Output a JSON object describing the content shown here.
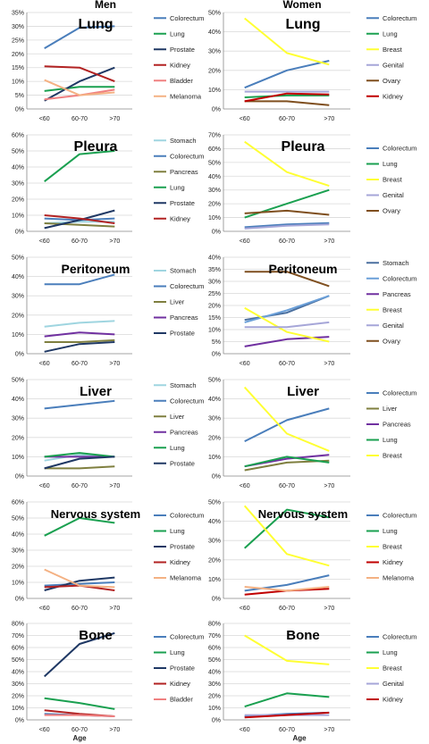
{
  "column_headers": {
    "men": "Men",
    "women": "Women"
  },
  "x_label": "Age",
  "chart_data": [
    {
      "type": "line",
      "panel": "Men",
      "title": "Lung",
      "categories": [
        "<60",
        "60-70",
        ">70"
      ],
      "ylim": [
        0,
        35
      ],
      "yticks": [
        "0%",
        "5%",
        "10%",
        "15%",
        "20%",
        "25%",
        "30%",
        "35%"
      ],
      "series": [
        {
          "name": "Colorectum",
          "color": "#4a7ebb",
          "values": [
            22,
            29.5,
            30
          ]
        },
        {
          "name": "Lung",
          "color": "#1aa050",
          "values": [
            6.5,
            8,
            8
          ]
        },
        {
          "name": "Prostate",
          "color": "#1f3864",
          "values": [
            3,
            10,
            15
          ]
        },
        {
          "name": "Kidney",
          "color": "#b22222",
          "values": [
            15.5,
            15,
            10
          ]
        },
        {
          "name": "Bladder",
          "color": "#f08080",
          "values": [
            3.5,
            5,
            7
          ]
        },
        {
          "name": "Melanoma",
          "color": "#f4b183",
          "values": [
            10.5,
            5,
            6
          ]
        }
      ]
    },
    {
      "type": "line",
      "panel": "Women",
      "title": "Lung",
      "categories": [
        "<60",
        "60-70",
        ">70"
      ],
      "ylim": [
        0,
        50
      ],
      "yticks": [
        "0%",
        "10%",
        "20%",
        "30%",
        "40%",
        "50%"
      ],
      "series": [
        {
          "name": "Colorectum",
          "color": "#4a7ebb",
          "values": [
            11,
            20,
            25
          ]
        },
        {
          "name": "Lung",
          "color": "#1aa050",
          "values": [
            6,
            7,
            7
          ]
        },
        {
          "name": "Breast",
          "color": "#ffff33",
          "values": [
            47,
            29,
            23
          ]
        },
        {
          "name": "Genital",
          "color": "#a6a6d8",
          "values": [
            9,
            9,
            9
          ]
        },
        {
          "name": "Ovary",
          "color": "#7f4f1f",
          "values": [
            4,
            4,
            2
          ]
        },
        {
          "name": "Kidney",
          "color": "#c00000",
          "values": [
            4,
            8,
            7.5
          ]
        }
      ]
    },
    {
      "type": "line",
      "panel": "Men",
      "title": "Pleura",
      "categories": [
        "<60",
        "60-70",
        ">70"
      ],
      "ylim": [
        0,
        60
      ],
      "yticks": [
        "0%",
        "10%",
        "20%",
        "30%",
        "40%",
        "50%",
        "60%"
      ],
      "series": [
        {
          "name": "Stomach",
          "color": "#9fd5e0",
          "values": [
            5,
            6,
            6
          ]
        },
        {
          "name": "Colorectum",
          "color": "#4a7ebb",
          "values": [
            8,
            7,
            8
          ]
        },
        {
          "name": "Pancreas",
          "color": "#7f7f3f",
          "values": [
            5,
            4,
            3
          ]
        },
        {
          "name": "Lung",
          "color": "#1aa050",
          "values": [
            31,
            48,
            50
          ]
        },
        {
          "name": "Prostate",
          "color": "#1f3864",
          "values": [
            2,
            7,
            13
          ]
        },
        {
          "name": "Kidney",
          "color": "#b22222",
          "values": [
            10,
            8,
            5
          ]
        }
      ]
    },
    {
      "type": "line",
      "panel": "Women",
      "title": "Pleura",
      "categories": [
        "<60",
        "60-70",
        ">70"
      ],
      "ylim": [
        0,
        70
      ],
      "yticks": [
        "0%",
        "10%",
        "20%",
        "30%",
        "40%",
        "50%",
        "60%",
        "70%"
      ],
      "series": [
        {
          "name": "Colorectum",
          "color": "#4a7ebb",
          "values": [
            3,
            5,
            6
          ]
        },
        {
          "name": "Lung",
          "color": "#1aa050",
          "values": [
            10,
            20,
            30
          ]
        },
        {
          "name": "Breast",
          "color": "#ffff33",
          "values": [
            65,
            43,
            33
          ]
        },
        {
          "name": "Genital",
          "color": "#a6a6d8",
          "values": [
            2,
            4,
            5
          ]
        },
        {
          "name": "Ovary",
          "color": "#7f4f1f",
          "values": [
            13,
            15,
            12
          ]
        }
      ]
    },
    {
      "type": "line",
      "panel": "Men",
      "title": "Peritoneum",
      "categories": [
        "<60",
        "60-70",
        ">70"
      ],
      "ylim": [
        0,
        50
      ],
      "yticks": [
        "0%",
        "10%",
        "20%",
        "30%",
        "40%",
        "50%"
      ],
      "series": [
        {
          "name": "Stomach",
          "color": "#9fd5e0",
          "values": [
            14,
            16,
            17
          ]
        },
        {
          "name": "Colorectum",
          "color": "#4a7ebb",
          "values": [
            36,
            36,
            41
          ]
        },
        {
          "name": "Liver",
          "color": "#7f7f3f",
          "values": [
            6,
            6,
            7
          ]
        },
        {
          "name": "Pancreas",
          "color": "#7030a0",
          "values": [
            9,
            11,
            10
          ]
        },
        {
          "name": "Prostate",
          "color": "#1f3864",
          "values": [
            1,
            5,
            6
          ]
        }
      ]
    },
    {
      "type": "line",
      "panel": "Women",
      "title": "Peritoneum",
      "categories": [
        "<60",
        "60-70",
        ">70"
      ],
      "ylim": [
        0,
        40
      ],
      "yticks": [
        "0%",
        "5%",
        "10%",
        "15%",
        "20%",
        "25%",
        "30%",
        "35%",
        "40%"
      ],
      "series": [
        {
          "name": "Stomach",
          "color": "#4a6f9f",
          "values": [
            14,
            17,
            24
          ]
        },
        {
          "name": "Colorectum",
          "color": "#6a9fd8",
          "values": [
            13,
            18,
            24
          ]
        },
        {
          "name": "Pancreas",
          "color": "#7030a0",
          "values": [
            3,
            6,
            7
          ]
        },
        {
          "name": "Breast",
          "color": "#ffff33",
          "values": [
            19,
            9,
            5
          ]
        },
        {
          "name": "Genital",
          "color": "#a6a6d8",
          "values": [
            11,
            11,
            13
          ]
        },
        {
          "name": "Ovary",
          "color": "#7f4f1f",
          "values": [
            34,
            34,
            28
          ]
        }
      ]
    },
    {
      "type": "line",
      "panel": "Men",
      "title": "Liver",
      "categories": [
        "<60",
        "60-70",
        ">70"
      ],
      "ylim": [
        0,
        50
      ],
      "yticks": [
        "0%",
        "10%",
        "20%",
        "30%",
        "40%",
        "50%"
      ],
      "series": [
        {
          "name": "Stomach",
          "color": "#9fd5e0",
          "values": [
            8,
            11,
            10
          ]
        },
        {
          "name": "Colorectum",
          "color": "#4a7ebb",
          "values": [
            35,
            37,
            39
          ]
        },
        {
          "name": "Liver",
          "color": "#7f7f3f",
          "values": [
            4,
            4,
            5
          ]
        },
        {
          "name": "Pancreas",
          "color": "#7030a0",
          "values": [
            10,
            10,
            10
          ]
        },
        {
          "name": "Lung",
          "color": "#1aa050",
          "values": [
            10,
            12,
            10
          ]
        },
        {
          "name": "Prostate",
          "color": "#1f3864",
          "values": [
            4,
            9,
            10
          ]
        }
      ]
    },
    {
      "type": "line",
      "panel": "Women",
      "title": "Liver",
      "categories": [
        "<60",
        "60-70",
        ">70"
      ],
      "ylim": [
        0,
        50
      ],
      "yticks": [
        "0%",
        "10%",
        "20%",
        "30%",
        "40%",
        "50%"
      ],
      "series": [
        {
          "name": "Colorectum",
          "color": "#4a7ebb",
          "values": [
            18,
            29,
            35
          ]
        },
        {
          "name": "Liver",
          "color": "#7f7f3f",
          "values": [
            3,
            7,
            8
          ]
        },
        {
          "name": "Pancreas",
          "color": "#7030a0",
          "values": [
            5,
            9,
            11
          ]
        },
        {
          "name": "Lung",
          "color": "#1aa050",
          "values": [
            5,
            10,
            7
          ]
        },
        {
          "name": "Breast",
          "color": "#ffff33",
          "values": [
            46,
            22,
            13
          ]
        }
      ]
    },
    {
      "type": "line",
      "panel": "Men",
      "title": "Nervous system",
      "categories": [
        "<60",
        "60-70",
        ">70"
      ],
      "ylim": [
        0,
        60
      ],
      "yticks": [
        "0%",
        "10%",
        "20%",
        "30%",
        "40%",
        "50%",
        "60%"
      ],
      "series": [
        {
          "name": "Colorectum",
          "color": "#4a7ebb",
          "values": [
            8,
            9,
            10
          ]
        },
        {
          "name": "Lung",
          "color": "#1aa050",
          "values": [
            39,
            50,
            47
          ]
        },
        {
          "name": "Prostate",
          "color": "#1f3864",
          "values": [
            5,
            11,
            13
          ]
        },
        {
          "name": "Kidney",
          "color": "#b22222",
          "values": [
            7,
            8,
            5
          ]
        },
        {
          "name": "Melanoma",
          "color": "#f4b183",
          "values": [
            18,
            8,
            7
          ]
        }
      ]
    },
    {
      "type": "line",
      "panel": "Women",
      "title": "Nervous system",
      "categories": [
        "<60",
        "60-70",
        ">70"
      ],
      "ylim": [
        0,
        50
      ],
      "yticks": [
        "0%",
        "10%",
        "20%",
        "30%",
        "40%",
        "50%"
      ],
      "series": [
        {
          "name": "Colorectum",
          "color": "#4a7ebb",
          "values": [
            4,
            7,
            12
          ]
        },
        {
          "name": "Lung",
          "color": "#1aa050",
          "values": [
            26,
            46,
            42
          ]
        },
        {
          "name": "Breast",
          "color": "#ffff33",
          "values": [
            48,
            23,
            17
          ]
        },
        {
          "name": "Kidney",
          "color": "#c00000",
          "values": [
            2,
            4,
            5
          ]
        },
        {
          "name": "Melanoma",
          "color": "#f4b183",
          "values": [
            6,
            4,
            6
          ]
        }
      ]
    },
    {
      "type": "line",
      "panel": "Men",
      "title": "Bone",
      "categories": [
        "<60",
        "60-70",
        ">70"
      ],
      "ylim": [
        0,
        80
      ],
      "yticks": [
        "0%",
        "10%",
        "20%",
        "30%",
        "40%",
        "50%",
        "60%",
        "70%",
        "80%"
      ],
      "series": [
        {
          "name": "Colorectum",
          "color": "#4a7ebb",
          "values": [
            5,
            4,
            3
          ]
        },
        {
          "name": "Lung",
          "color": "#1aa050",
          "values": [
            18,
            14,
            9
          ]
        },
        {
          "name": "Prostate",
          "color": "#1f3864",
          "values": [
            36,
            63,
            72
          ]
        },
        {
          "name": "Kidney",
          "color": "#b22222",
          "values": [
            8,
            5,
            3
          ]
        },
        {
          "name": "Bladder",
          "color": "#f08080",
          "values": [
            4,
            4,
            3
          ]
        }
      ]
    },
    {
      "type": "line",
      "panel": "Women",
      "title": "Bone",
      "categories": [
        "<60",
        "60-70",
        ">70"
      ],
      "ylim": [
        0,
        80
      ],
      "yticks": [
        "0%",
        "10%",
        "20%",
        "30%",
        "40%",
        "50%",
        "60%",
        "70%",
        "80%"
      ],
      "series": [
        {
          "name": "Colorectum",
          "color": "#4a7ebb",
          "values": [
            3,
            5,
            6
          ]
        },
        {
          "name": "Lung",
          "color": "#1aa050",
          "values": [
            11,
            22,
            19
          ]
        },
        {
          "name": "Breast",
          "color": "#ffff33",
          "values": [
            70,
            49,
            46
          ]
        },
        {
          "name": "Genital",
          "color": "#a6a6d8",
          "values": [
            4,
            4,
            4
          ]
        },
        {
          "name": "Kidney",
          "color": "#c00000",
          "values": [
            2,
            4,
            6
          ]
        }
      ]
    }
  ]
}
